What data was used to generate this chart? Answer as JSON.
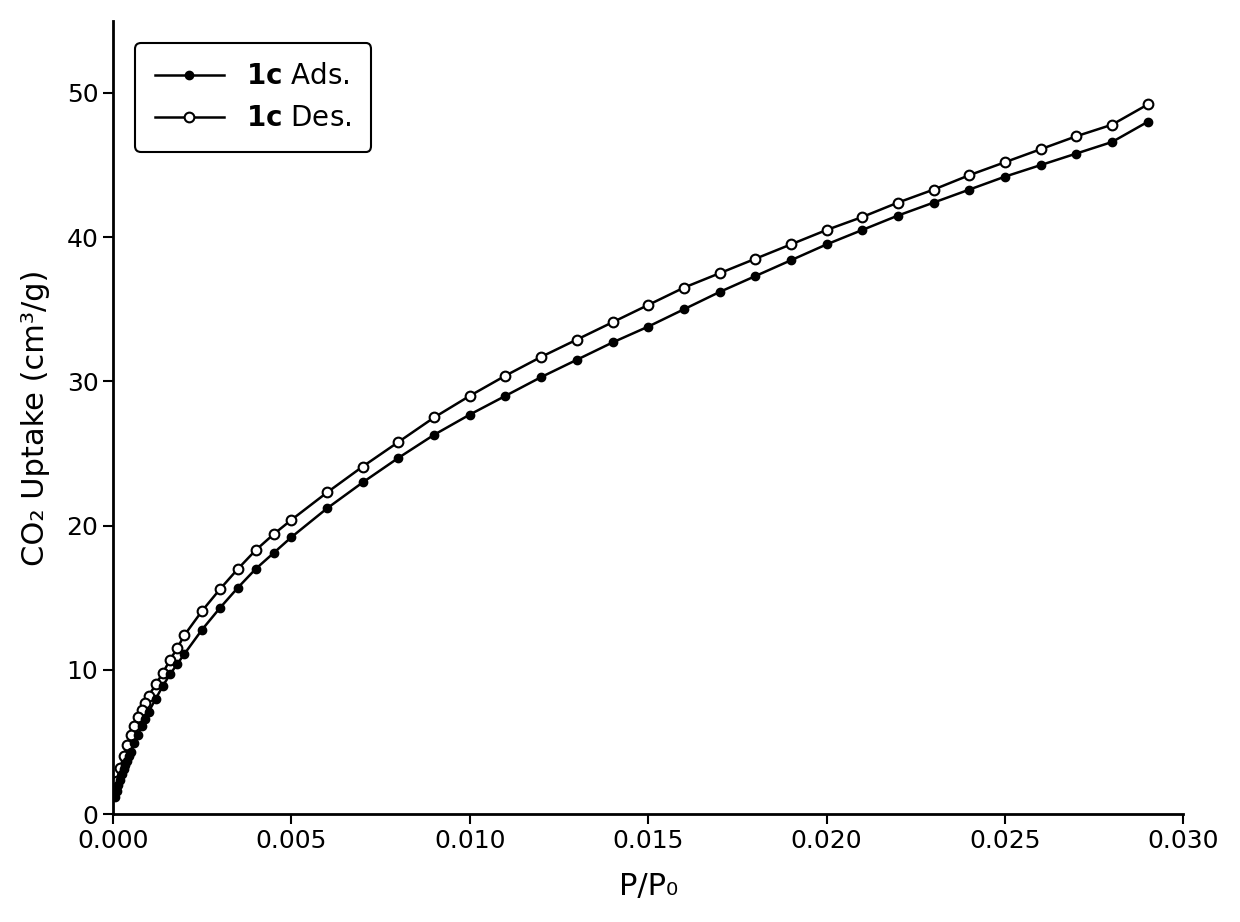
{
  "title": "",
  "xlabel": "P/P₀",
  "ylabel": "CO₂ Uptake (cm³/g)",
  "xlim": [
    0.0,
    0.03
  ],
  "ylim": [
    0,
    55
  ],
  "yticks": [
    0,
    10,
    20,
    30,
    40,
    50
  ],
  "xticks": [
    0.0,
    0.005,
    0.01,
    0.015,
    0.02,
    0.025,
    0.03
  ],
  "ads_x": [
    5e-05,
    0.0001,
    0.00015,
    0.0002,
    0.00025,
    0.0003,
    0.00035,
    0.0004,
    0.00045,
    0.0005,
    0.0006,
    0.0007,
    0.0008,
    0.0009,
    0.001,
    0.0012,
    0.0014,
    0.0016,
    0.0018,
    0.002,
    0.0025,
    0.003,
    0.0035,
    0.004,
    0.0045,
    0.005,
    0.006,
    0.007,
    0.008,
    0.009,
    0.01,
    0.011,
    0.012,
    0.013,
    0.014,
    0.015,
    0.016,
    0.017,
    0.018,
    0.019,
    0.02,
    0.021,
    0.022,
    0.023,
    0.024,
    0.025,
    0.026,
    0.027,
    0.028,
    0.029
  ],
  "ads_y": [
    1.2,
    1.6,
    2.0,
    2.4,
    2.8,
    3.1,
    3.4,
    3.7,
    4.0,
    4.3,
    4.9,
    5.5,
    6.1,
    6.6,
    7.1,
    8.0,
    8.9,
    9.7,
    10.4,
    11.1,
    12.8,
    14.3,
    15.7,
    17.0,
    18.1,
    19.2,
    21.2,
    23.0,
    24.7,
    26.3,
    27.7,
    29.0,
    30.3,
    31.5,
    32.7,
    33.8,
    35.0,
    36.2,
    37.3,
    38.4,
    39.5,
    40.5,
    41.5,
    42.4,
    43.3,
    44.2,
    45.0,
    45.8,
    46.6,
    48.0
  ],
  "des_x": [
    0.029,
    0.028,
    0.027,
    0.026,
    0.025,
    0.024,
    0.023,
    0.022,
    0.021,
    0.02,
    0.019,
    0.018,
    0.017,
    0.016,
    0.015,
    0.014,
    0.013,
    0.012,
    0.011,
    0.01,
    0.009,
    0.008,
    0.007,
    0.006,
    0.005,
    0.0045,
    0.004,
    0.0035,
    0.003,
    0.0025,
    0.002,
    0.0018,
    0.0016,
    0.0014,
    0.0012,
    0.001,
    0.0009,
    0.0008,
    0.0007,
    0.0006,
    0.0005,
    0.0004,
    0.0003,
    0.0002,
    0.0001
  ],
  "des_y": [
    49.2,
    47.8,
    47.0,
    46.1,
    45.2,
    44.3,
    43.3,
    42.4,
    41.4,
    40.5,
    39.5,
    38.5,
    37.5,
    36.5,
    35.3,
    34.1,
    32.9,
    31.7,
    30.4,
    29.0,
    27.5,
    25.8,
    24.1,
    22.3,
    20.4,
    19.4,
    18.3,
    17.0,
    15.6,
    14.1,
    12.4,
    11.5,
    10.7,
    9.8,
    9.0,
    8.2,
    7.7,
    7.2,
    6.7,
    6.1,
    5.5,
    4.8,
    4.0,
    3.2,
    2.3
  ],
  "ads_color": "#000000",
  "des_color": "#000000",
  "linewidth": 1.8,
  "ads_markersize": 6,
  "des_markersize": 7,
  "legend_labels": [
    "1c Ads.",
    "1c Des."
  ],
  "background_color": "#ffffff"
}
